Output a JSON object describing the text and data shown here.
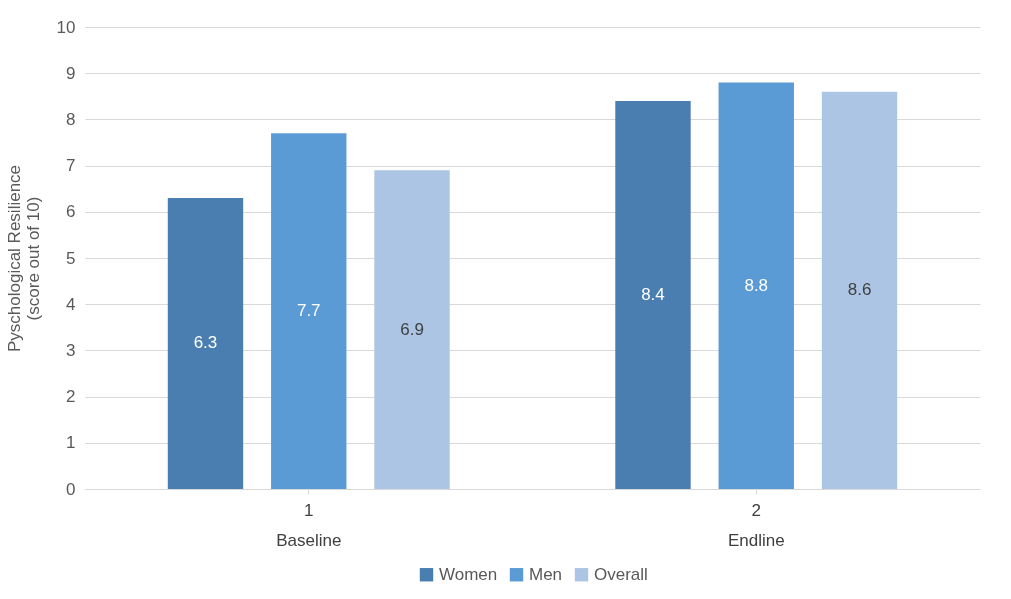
{
  "chart_data": {
    "type": "bar",
    "ylabel": "Pyschological Resilience\n(score out of 10)",
    "categories": [
      "1\nBaseline",
      "2\nEndline"
    ],
    "series": [
      {
        "name": "Women",
        "color": "#4a7eb0",
        "values": [
          6.3,
          8.4
        ]
      },
      {
        "name": "Men",
        "color": "#5b9bd5",
        "values": [
          7.7,
          8.8
        ]
      },
      {
        "name": "Overall",
        "color": "#adc5e5",
        "values": [
          6.9,
          8.6
        ]
      }
    ],
    "ylim": [
      0,
      10
    ],
    "yticks": [
      0,
      1,
      2,
      3,
      4,
      5,
      6,
      7,
      8,
      9,
      10
    ],
    "grid": "y",
    "legend": "bottom",
    "data_labels": true
  }
}
